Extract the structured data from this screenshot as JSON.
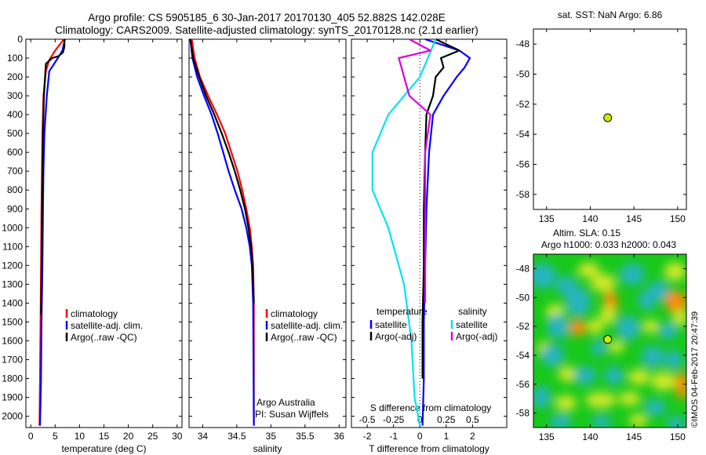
{
  "title_line1": "Argo profile: CS 5905185_6 30-Jan-2017 20170130_405 52.882S 142.028E",
  "title_line2": "Climatology: CARS2009. Satellite-adjusted climatology: synTS_20170128.nc (2.1d earlier)",
  "stamp": "©IMOS 04-Feb-2017 20:47:39",
  "colors": {
    "climatology": "#ff0000",
    "satellite": "#0000ff",
    "argo": "#000000",
    "sat_salinity": "#00e5ee",
    "argo_salinity": "#dd00dd",
    "float_marker": "#ccee00"
  },
  "depth_ticks": [
    0,
    100,
    200,
    300,
    400,
    500,
    600,
    700,
    800,
    900,
    1000,
    1100,
    1200,
    1300,
    1400,
    1500,
    1600,
    1700,
    1800,
    1900,
    2000
  ],
  "chart_data": [
    {
      "type": "line",
      "xlabel": "temperature (deg C)",
      "ylabel": "",
      "xlim": [
        -1,
        31
      ],
      "ylim": [
        2060,
        0
      ],
      "xticks": [
        0,
        5,
        10,
        15,
        20,
        25,
        30
      ],
      "legend": [
        "climatology",
        "satellite-adj. clim.",
        "Argo(..raw -QC)"
      ],
      "series": [
        {
          "name": "climatology",
          "x": [
            6.8,
            5,
            3.8,
            3.1,
            2.6,
            2.4,
            2.3,
            2.2,
            2.1,
            2.0,
            1.9,
            1.8
          ],
          "y": [
            0,
            60,
            110,
            170,
            300,
            500,
            700,
            900,
            1200,
            1500,
            1800,
            2050
          ]
        },
        {
          "name": "satellite-adj. clim.",
          "x": [
            7.0,
            6.5,
            5.3,
            3.8,
            3.3,
            2.8,
            2.6,
            2.5,
            2.4,
            2.2,
            2.1,
            1.9
          ],
          "y": [
            0,
            60,
            110,
            170,
            300,
            500,
            700,
            900,
            1200,
            1500,
            1800,
            2050
          ]
        },
        {
          "name": "Argo(..raw -QC)",
          "x": [
            6.9,
            6.9,
            6.6,
            5.7,
            4.4,
            3.1,
            3.0,
            2.7,
            2.5,
            2.4,
            2.3,
            2.2,
            2.1
          ],
          "y": [
            0,
            40,
            70,
            90,
            100,
            130,
            170,
            300,
            500,
            700,
            1000,
            1300,
            1460
          ]
        }
      ]
    },
    {
      "type": "line",
      "xlabel": "salinity",
      "xlim": [
        33.8,
        36.1
      ],
      "ylim": [
        2060,
        0
      ],
      "xticks": [
        34,
        34.5,
        35,
        35.5,
        36
      ],
      "legend": [
        "climatology",
        "satellite-adj. clim.",
        "Argo(..raw -QC)"
      ],
      "annotations": [
        "Argo Australia",
        "PI: Susan Wijffels"
      ],
      "series": [
        {
          "name": "climatology",
          "x": [
            33.84,
            33.88,
            33.96,
            34.08,
            34.21,
            34.33,
            34.42,
            34.51,
            34.58,
            34.64,
            34.69,
            34.72,
            34.74,
            34.75,
            34.75
          ],
          "y": [
            0,
            100,
            200,
            300,
            400,
            500,
            600,
            700,
            800,
            900,
            1000,
            1100,
            1200,
            1400,
            2050
          ]
        },
        {
          "name": "satellite-adj. clim.",
          "x": [
            33.82,
            33.85,
            33.92,
            34.02,
            34.13,
            34.22,
            34.3,
            34.38,
            34.47,
            34.57,
            34.64,
            34.69,
            34.72,
            34.74,
            34.75
          ],
          "y": [
            0,
            100,
            200,
            300,
            400,
            500,
            600,
            700,
            800,
            900,
            1000,
            1100,
            1200,
            1400,
            2050
          ]
        },
        {
          "name": "Argo(..raw -QC)",
          "x": [
            33.82,
            33.86,
            33.95,
            34.05,
            34.17,
            34.28,
            34.38,
            34.47,
            34.55,
            34.62,
            34.67,
            34.71,
            34.73,
            34.75
          ],
          "y": [
            0,
            100,
            200,
            300,
            400,
            500,
            600,
            700,
            800,
            900,
            1000,
            1100,
            1200,
            1400
          ]
        }
      ]
    },
    {
      "type": "line",
      "xlabel": "T difference from climatology",
      "xlabel2": "S difference from climatology",
      "xlim": [
        -2.6,
        3.3
      ],
      "ylim": [
        2060,
        0
      ],
      "xticks": [
        -2,
        -1,
        0,
        1,
        2
      ],
      "xticks2": [
        -0.5,
        -0.25,
        0,
        0.25,
        0.5
      ],
      "legend_headers": [
        "temperature",
        "salinity"
      ],
      "legend": [
        "satellite",
        "Argo(-adj)",
        "satellite",
        "Argo(-adj)"
      ],
      "series": [
        {
          "name": "satellite (temperature)",
          "x": [
            0.2,
            1.5,
            1.9,
            1.7,
            1.4,
            0.9,
            0.5,
            0.35,
            0.25,
            0.2,
            0.15,
            0.15,
            0.1
          ],
          "y": [
            0,
            60,
            100,
            150,
            200,
            300,
            400,
            600,
            900,
            1200,
            1500,
            1800,
            2050
          ]
        },
        {
          "name": "Argo(-adj) (temperature)",
          "x": [
            0.6,
            1.5,
            0.8,
            0.9,
            0.6,
            0.5,
            0.25,
            0.2,
            0.15,
            0.15,
            0.1,
            0.1
          ],
          "y": [
            0,
            60,
            100,
            150,
            200,
            300,
            400,
            600,
            900,
            1200,
            1500,
            1800
          ]
        },
        {
          "name": "satellite (salinity)",
          "x": [
            0.15,
            0.0,
            -0.3,
            -0.45,
            -0.45,
            -0.3,
            -0.15,
            -0.08,
            -0.05,
            0.0
          ],
          "y": [
            0,
            200,
            400,
            600,
            800,
            1000,
            1300,
            1600,
            1900,
            2050
          ]
        },
        {
          "name": "Argo(-adj) (salinity)",
          "x": [
            -0.1,
            0.1,
            -0.2,
            -0.15,
            -0.1,
            0.1,
            0.05,
            0.05,
            0.05
          ],
          "y": [
            0,
            60,
            100,
            200,
            300,
            400,
            600,
            1000,
            1400
          ]
        }
      ]
    },
    {
      "type": "scatter",
      "title": "sat. SST: NaN Argo: 6.86",
      "xlim": [
        133.5,
        151
      ],
      "ylim": [
        -59,
        -47
      ],
      "xticks": [
        135,
        140,
        145,
        150
      ],
      "yticks": [
        -48,
        -50,
        -52,
        -54,
        -56,
        -58
      ],
      "points": [
        {
          "x": 142.0,
          "y": -52.9
        }
      ]
    },
    {
      "type": "heatmap",
      "title_line1": "Altim. SLA: 0.15",
      "title_line2": "Argo h1000: 0.033 h2000: 0.043",
      "xlim": [
        133.5,
        151
      ],
      "ylim": [
        -59,
        -47
      ],
      "xticks": [
        135,
        140,
        145,
        150
      ],
      "yticks": [
        -48,
        -50,
        -52,
        -54,
        -56,
        -58
      ],
      "points": [
        {
          "x": 142.0,
          "y": -52.9
        }
      ],
      "colormap": {
        "low": "#28b4c0",
        "mid": "#18c81a",
        "mid_high": "#cfe82a",
        "high": "#ff8c00"
      }
    }
  ]
}
